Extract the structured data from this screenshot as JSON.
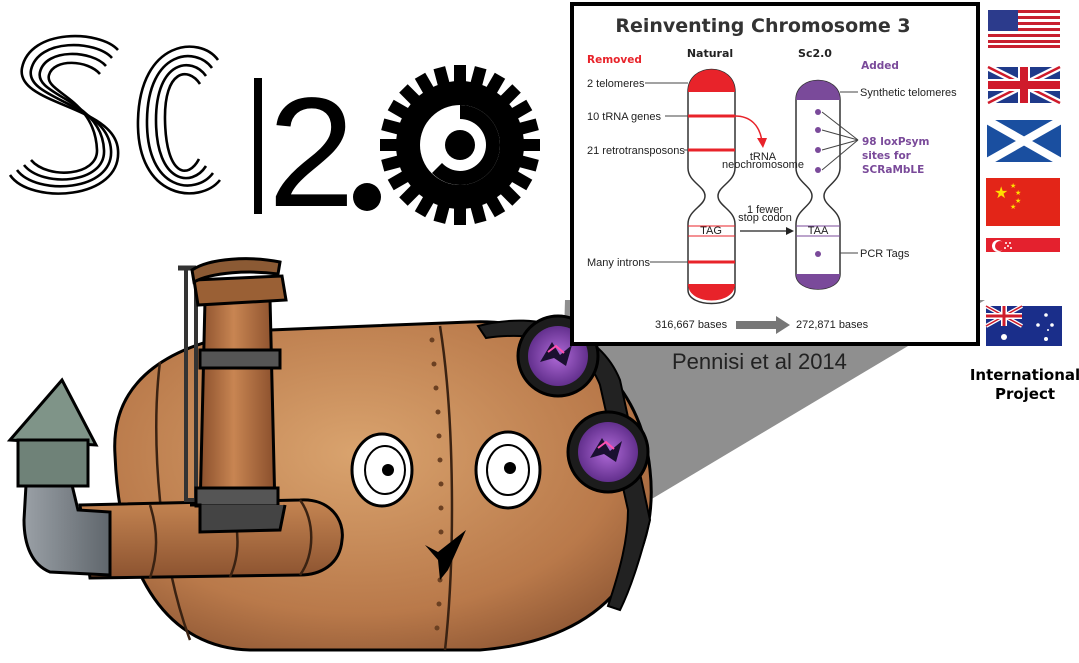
{
  "logo": {
    "text": "Sc|2.0"
  },
  "panel": {
    "title": "Reinventing Chromosome 3",
    "removed_header": "Removed",
    "natural_header": "Natural",
    "sc20_header": "Sc2.0",
    "added_header": "Added",
    "removed_items": [
      "2 telomeres",
      "10 tRNA genes",
      "21 retrotransposons",
      "Many introns"
    ],
    "trna_arrow_label": [
      "tRNA",
      "neochromosome"
    ],
    "stop_codon_label": [
      "1 fewer",
      "stop codon"
    ],
    "natural_codon": "TAG",
    "synthetic_codon": "TAA",
    "added_items": {
      "telomeres": "Synthetic telomeres",
      "loxpsym": [
        "98 loxPsym",
        "sites for",
        "SCRaMbLE"
      ],
      "pcr": "PCR Tags"
    },
    "natural_bases": "316,667 bases",
    "synthetic_bases": "272,871 bases",
    "colors": {
      "removed": "#e8232a",
      "added": "#7a4a9a"
    }
  },
  "citation": "Pennisi et al 2014",
  "flags": {
    "items": [
      "usa-flag",
      "uk-flag",
      "scotland-flag",
      "china-flag",
      "singapore-flag",
      "australia-flag"
    ],
    "label": [
      "International",
      "Project"
    ]
  }
}
